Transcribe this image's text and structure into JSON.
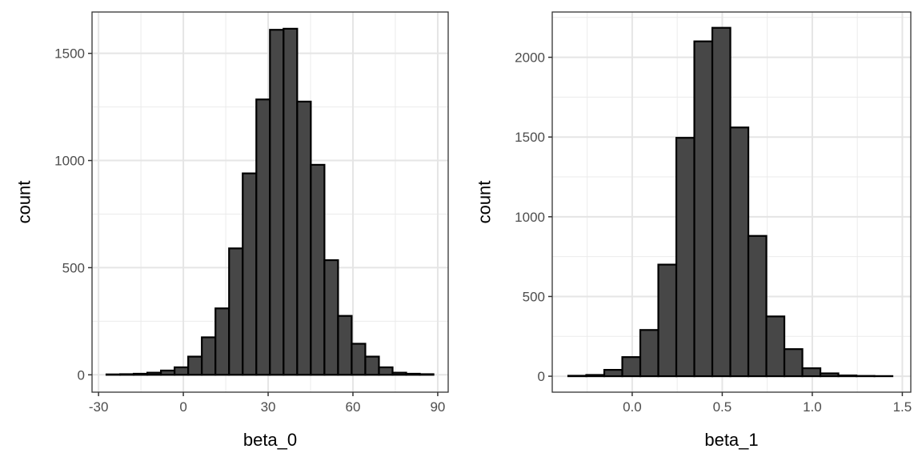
{
  "chart_data": [
    {
      "type": "bar",
      "title": "",
      "xlabel": "beta_0",
      "ylabel": "count",
      "bin_start": -27.2,
      "bin_width": 4.82,
      "values": [
        2,
        3,
        5,
        10,
        20,
        35,
        85,
        175,
        310,
        590,
        940,
        1285,
        1610,
        1615,
        1275,
        980,
        535,
        275,
        145,
        85,
        35,
        10,
        5,
        3
      ],
      "xlim": [
        -32.3,
        93.7
      ],
      "ylim": [
        -81,
        1693
      ],
      "xticks": [
        -30,
        0,
        30,
        60,
        90
      ],
      "xtick_labels": [
        "-30",
        "0",
        "30",
        "60",
        "90"
      ],
      "yticks": [
        0,
        500,
        1000,
        1500
      ],
      "ytick_labels": [
        "0",
        "500",
        "1000",
        "1500"
      ],
      "grid": true,
      "bar_fill": "#474747",
      "bar_stroke": "#000000"
    },
    {
      "type": "bar",
      "title": "",
      "xlabel": "beta_1",
      "ylabel": "count",
      "bin_start": -0.355,
      "bin_width": 0.1,
      "values": [
        3,
        8,
        40,
        120,
        290,
        700,
        1495,
        2100,
        2185,
        1560,
        880,
        375,
        170,
        50,
        18,
        5,
        2,
        1
      ],
      "xlim": [
        -0.444,
        1.547
      ],
      "ylim": [
        -100,
        2284
      ],
      "xticks": [
        0.0,
        0.5,
        1.0,
        1.5
      ],
      "xtick_labels": [
        "0.0",
        "0.5",
        "1.0",
        "1.5"
      ],
      "yticks": [
        0,
        500,
        1000,
        1500,
        2000
      ],
      "ytick_labels": [
        "0",
        "500",
        "1000",
        "1500",
        "2000"
      ],
      "grid": true,
      "bar_fill": "#474747",
      "bar_stroke": "#000000"
    }
  ]
}
